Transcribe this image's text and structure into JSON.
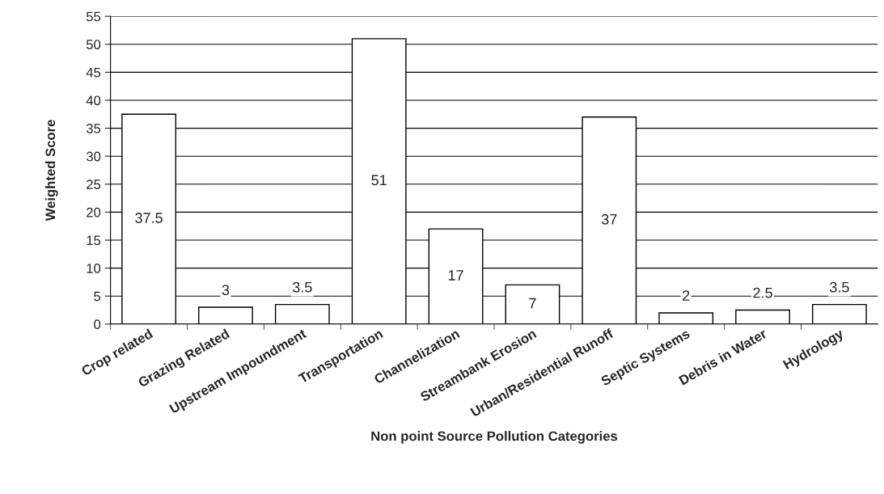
{
  "chart_data": {
    "type": "bar",
    "xlabel": "Non point Source Pollution Categories",
    "ylabel": "Weighted Score",
    "categories": [
      "Crop related",
      "Grazing Related",
      "Upstream Impoundment",
      "Transportation",
      "Channelization",
      "Streambank Erosion",
      "Urban/Residential Runoff",
      "Septic Systems",
      "Debris in Water",
      "Hydrology"
    ],
    "values": [
      37.5,
      3,
      3.5,
      51,
      17,
      7,
      37,
      2,
      2.5,
      3.5
    ],
    "color": "#ffffff",
    "ylim": [
      0,
      55
    ],
    "yticks": [
      0,
      5,
      10,
      15,
      20,
      25,
      30,
      35,
      40,
      45,
      50,
      55
    ],
    "grid": "y",
    "data_labels": true,
    "legend": false
  }
}
